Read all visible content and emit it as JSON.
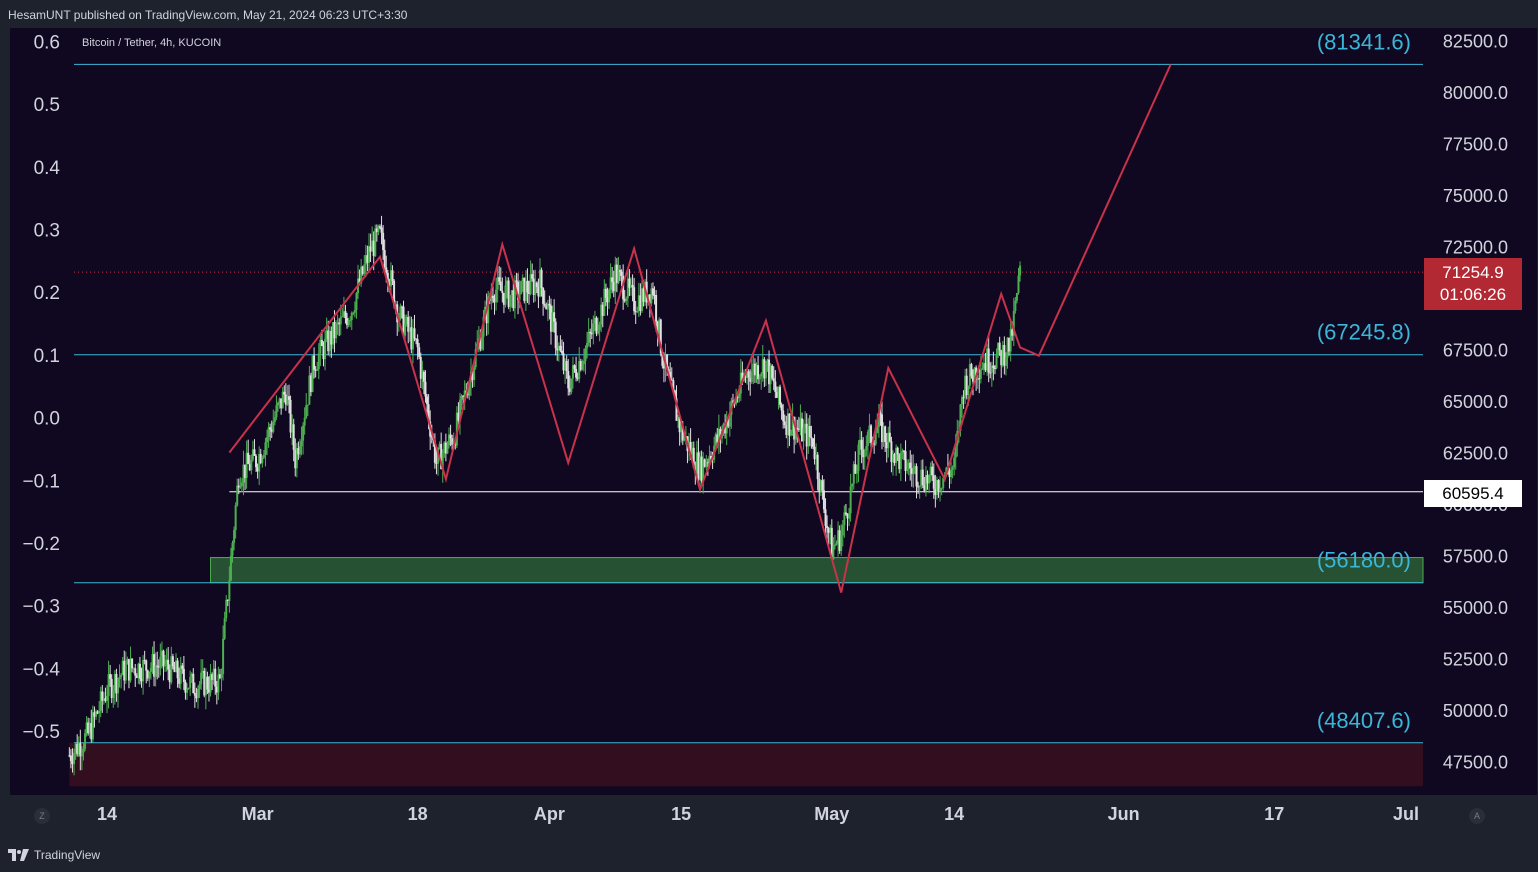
{
  "attribution": "HesamUNT published on TradingView.com, May 21, 2024 06:23 UTC+3:30",
  "brand": "TradingView",
  "buttons": {
    "zoom": "Z",
    "auto": "A"
  },
  "colors": {
    "page_bg": "#1e222d",
    "chart_bg": "#100820",
    "level_line": "#3cb6d6",
    "projection_line": "#c8324a",
    "support_line": "#ffffff",
    "candle_up": "#4caf50",
    "candle_down": "#e0e0e0",
    "green_zone": "#2e6b3a",
    "red_zone": "#3a0f1e",
    "current_price_bg": "#b22833"
  },
  "chart_data": {
    "type": "candlestick",
    "title": "Bitcoin / Tether, 4h, KUCOIN",
    "price_axis": {
      "ticks": [
        "82500.0",
        "80000.0",
        "77500.0",
        "75000.0",
        "72500.0",
        "70000.0",
        "67500.0",
        "65000.0",
        "62500.0",
        "60000.0",
        "57500.0",
        "55000.0",
        "52500.0",
        "50000.0",
        "47500.0"
      ],
      "range": [
        46300,
        82900
      ]
    },
    "osc_axis": {
      "ticks": [
        "0.6",
        "0.5",
        "0.4",
        "0.3",
        "0.2",
        "0.1",
        "0.0",
        "−0.1",
        "−0.2",
        "−0.3",
        "−0.4",
        "−0.5"
      ],
      "range": [
        -0.58,
        0.62
      ]
    },
    "time_axis": {
      "labels": [
        "14",
        "Mar",
        "18",
        "Apr",
        "15",
        "May",
        "14",
        "Jun",
        "17",
        "Jul"
      ],
      "dates": [
        "2024-02-14",
        "2024-03-01",
        "2024-03-18",
        "2024-04-01",
        "2024-04-15",
        "2024-05-01",
        "2024-05-14",
        "2024-06-01",
        "2024-06-17",
        "2024-07-01"
      ],
      "range": [
        "2024-02-10",
        "2024-07-03"
      ]
    },
    "levels": [
      {
        "name": "target",
        "price": 81341.6,
        "label": "(81341.6)"
      },
      {
        "name": "resistance",
        "price": 67245.8,
        "label": "(67245.8)"
      },
      {
        "name": "demand",
        "price": 56180.0,
        "label": "(56180.0)"
      },
      {
        "name": "bottom",
        "price": 48407.6,
        "label": "(48407.6)"
      }
    ],
    "support": {
      "price": 60595.4,
      "label": "60595.4",
      "from": "2024-02-27"
    },
    "current_price": {
      "price": 71254.9,
      "label": "71254.9",
      "countdown": "01:06:26"
    },
    "zones": [
      {
        "name": "demand-zone",
        "from": "2024-02-25",
        "price_low": 56180.0,
        "price_high": 57400
      },
      {
        "name": "discount-zone",
        "from": "2024-02-10",
        "price_low": 46300,
        "price_high": 48407.6
      }
    ],
    "zigzag": [
      [
        "2024-02-27",
        62500
      ],
      [
        "2024-03-14",
        72000
      ],
      [
        "2024-03-21",
        61200
      ],
      [
        "2024-03-27",
        72600
      ],
      [
        "2024-04-03",
        62000
      ],
      [
        "2024-04-10",
        72400
      ],
      [
        "2024-04-17",
        60700
      ],
      [
        "2024-04-24",
        68900
      ],
      [
        "2024-05-02",
        55700
      ],
      [
        "2024-05-07",
        66600
      ],
      [
        "2024-05-13",
        61200
      ],
      [
        "2024-05-19",
        70200
      ],
      [
        "2024-05-21",
        67600
      ],
      [
        "2024-05-23",
        67200
      ],
      [
        "2024-06-06",
        81341.6
      ]
    ],
    "price_path": [
      [
        "2024-02-10",
        47800
      ],
      [
        "2024-02-12",
        48800
      ],
      [
        "2024-02-14",
        51000
      ],
      [
        "2024-02-16",
        52000
      ],
      [
        "2024-02-20",
        52200
      ],
      [
        "2024-02-23",
        51200
      ],
      [
        "2024-02-26",
        51400
      ],
      [
        "2024-02-27",
        56500
      ],
      [
        "2024-02-28",
        61500
      ],
      [
        "2024-03-01",
        62200
      ],
      [
        "2024-03-04",
        65500
      ],
      [
        "2024-03-05",
        62200
      ],
      [
        "2024-03-07",
        66900
      ],
      [
        "2024-03-09",
        68200
      ],
      [
        "2024-03-11",
        69500
      ],
      [
        "2024-03-13",
        72400
      ],
      [
        "2024-03-14",
        73000
      ],
      [
        "2024-03-16",
        69200
      ],
      [
        "2024-03-18",
        67500
      ],
      [
        "2024-03-20",
        62000
      ],
      [
        "2024-03-22",
        63500
      ],
      [
        "2024-03-24",
        67000
      ],
      [
        "2024-03-26",
        70500
      ],
      [
        "2024-03-28",
        70100
      ],
      [
        "2024-03-31",
        70800
      ],
      [
        "2024-04-01",
        69200
      ],
      [
        "2024-04-03",
        65800
      ],
      [
        "2024-04-05",
        67700
      ],
      [
        "2024-04-08",
        71200
      ],
      [
        "2024-04-10",
        69800
      ],
      [
        "2024-04-12",
        70500
      ],
      [
        "2024-04-13",
        67200
      ],
      [
        "2024-04-15",
        63500
      ],
      [
        "2024-04-17",
        61700
      ],
      [
        "2024-04-19",
        63200
      ],
      [
        "2024-04-22",
        66400
      ],
      [
        "2024-04-24",
        66800
      ],
      [
        "2024-04-26",
        64100
      ],
      [
        "2024-04-29",
        63100
      ],
      [
        "2024-04-30",
        60300
      ],
      [
        "2024-05-01",
        57800
      ],
      [
        "2024-05-02",
        58500
      ],
      [
        "2024-05-04",
        62600
      ],
      [
        "2024-05-06",
        63800
      ],
      [
        "2024-05-08",
        62200
      ],
      [
        "2024-05-10",
        61500
      ],
      [
        "2024-05-12",
        61000
      ],
      [
        "2024-05-14",
        61800
      ],
      [
        "2024-05-15",
        65800
      ],
      [
        "2024-05-17",
        66900
      ],
      [
        "2024-05-19",
        67200
      ],
      [
        "2024-05-20",
        67800
      ],
      [
        "2024-05-21",
        71254.9
      ]
    ]
  }
}
